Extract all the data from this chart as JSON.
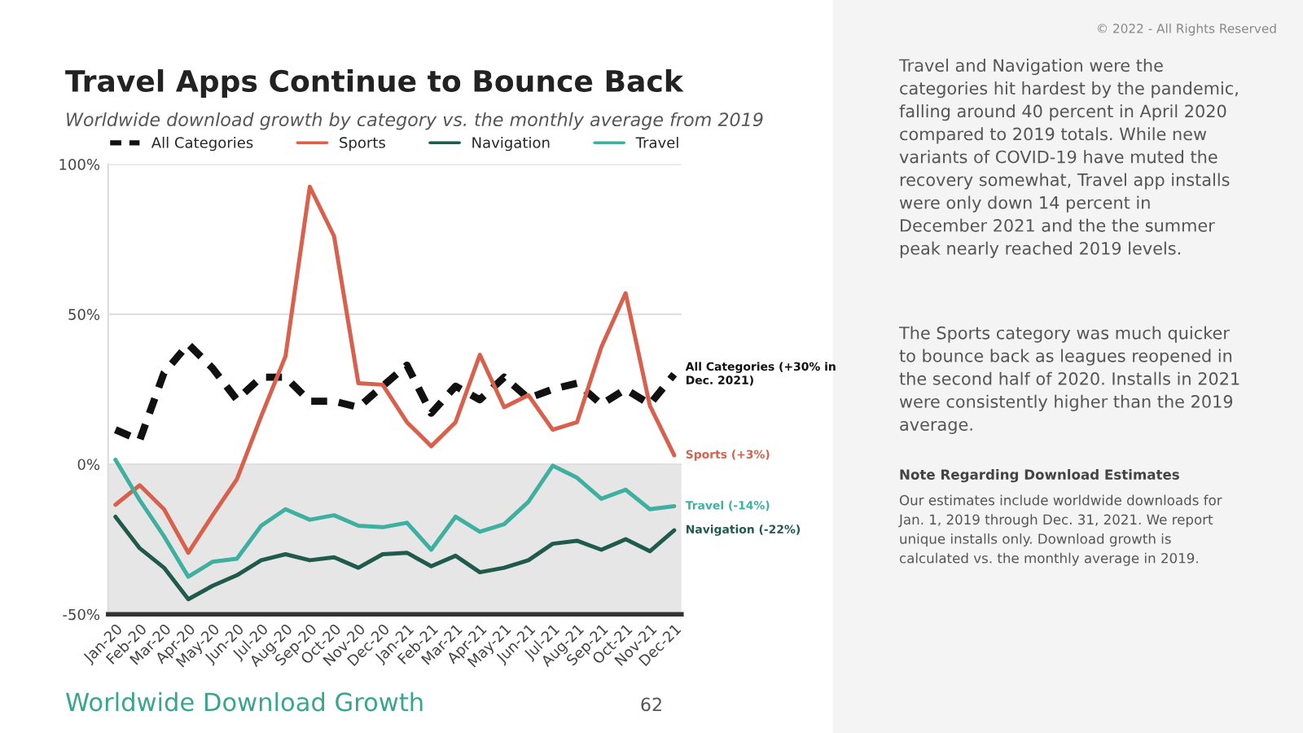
{
  "chart_data": {
    "type": "line",
    "title": "Travel Apps Continue to Bounce Back",
    "subtitle": "Worldwide download growth by category vs. the monthly average from 2019",
    "categories": [
      "Jan-20",
      "Feb-20",
      "Mar-20",
      "Apr-20",
      "May-20",
      "Jun-20",
      "Jul-20",
      "Aug-20",
      "Sep-20",
      "Oct-20",
      "Nov-20",
      "Dec-20",
      "Jan-21",
      "Feb-21",
      "Mar-21",
      "Apr-21",
      "May-21",
      "Jun-21",
      "Jul-21",
      "Aug-21",
      "Sep-21",
      "Oct-21",
      "Nov-21",
      "Dec-21"
    ],
    "series": [
      {
        "name": "All Categories",
        "color": "#111111",
        "line_style": "dashed",
        "values": [
          11.5,
          8,
          30.5,
          40,
          32,
          21.5,
          29,
          29,
          21,
          21,
          19,
          26,
          33,
          17,
          26,
          21.5,
          29,
          22,
          25,
          27,
          20,
          25,
          20,
          30
        ]
      },
      {
        "name": "Sports",
        "color": "#d9604c",
        "values": [
          -13.5,
          -7,
          -15,
          -29.5,
          -17,
          -5,
          16,
          36,
          92.5,
          76,
          27,
          26.5,
          14,
          6,
          14,
          36.5,
          19,
          23,
          11.5,
          14,
          39,
          57,
          19.5,
          3
        ]
      },
      {
        "name": "Navigation",
        "color": "#1f5a4a",
        "values": [
          -17.5,
          -28,
          -34.5,
          -45,
          -40.5,
          -37,
          -32,
          -30,
          -32,
          -31,
          -34.5,
          -30,
          -29.5,
          -34,
          -30.5,
          -36,
          -34.5,
          -32,
          -26.5,
          -25.5,
          -28.5,
          -25,
          -29,
          -22
        ]
      },
      {
        "name": "Travel",
        "color": "#3fb0a0",
        "values": [
          1.5,
          -12,
          -24,
          -37.5,
          -32.5,
          -31.5,
          -20.5,
          -15,
          -18.5,
          -17,
          -20.5,
          -21,
          -19.5,
          -28.5,
          -17.5,
          -22.5,
          -20,
          -12.5,
          -0.5,
          -4.5,
          -11.5,
          -8.5,
          -15,
          -14
        ]
      }
    ],
    "ylim": [
      -50,
      100
    ],
    "yticks": [
      {
        "value": -50,
        "label": "-50%"
      },
      {
        "value": 0,
        "label": "0%"
      },
      {
        "value": 50,
        "label": "50%"
      },
      {
        "value": 100,
        "label": "100%"
      }
    ],
    "bands": [
      {
        "axis": "y",
        "from": -50,
        "to": 0,
        "color": "#e6e6e6"
      }
    ],
    "grid": "y",
    "legend": "top",
    "annotations": [
      {
        "text": "All Categories (+30% in Dec. 2021)",
        "x": "Dec-21",
        "y": 30
      },
      {
        "text": "Sports (+3%)",
        "x": "Dec-21",
        "y": 3
      },
      {
        "text": "Navigation (-22%)",
        "x": "Dec-21",
        "y": -22
      },
      {
        "text": "Travel (-14%)",
        "x": "Dec-21",
        "y": -14
      },
      "Travel and Navigation were the categories hit hardest by the pandemic, falling around 40 percent in April 2020 compared to 2019 totals. While new variants of COVID-19 have muted the recovery somewhat, Travel app installs were only down 14 percent in December 2021 and the the summer peak nearly reached 2019 levels.",
      "The Sports category was much quicker to bounce back as leagues reopened in the second half of 2020. Installs in 2021 were consistently higher than the 2019 average.",
      "Note Regarding Download Estimates",
      "Our estimates include worldwide downloads for Jan. 1, 2019 through Dec. 31, 2021. We report unique installs only. Download growth is calculated vs. the monthly average in 2019.",
      "Worldwide Download Growth",
      "62",
      "© 2022 - All Rights Reserved"
    ]
  }
}
